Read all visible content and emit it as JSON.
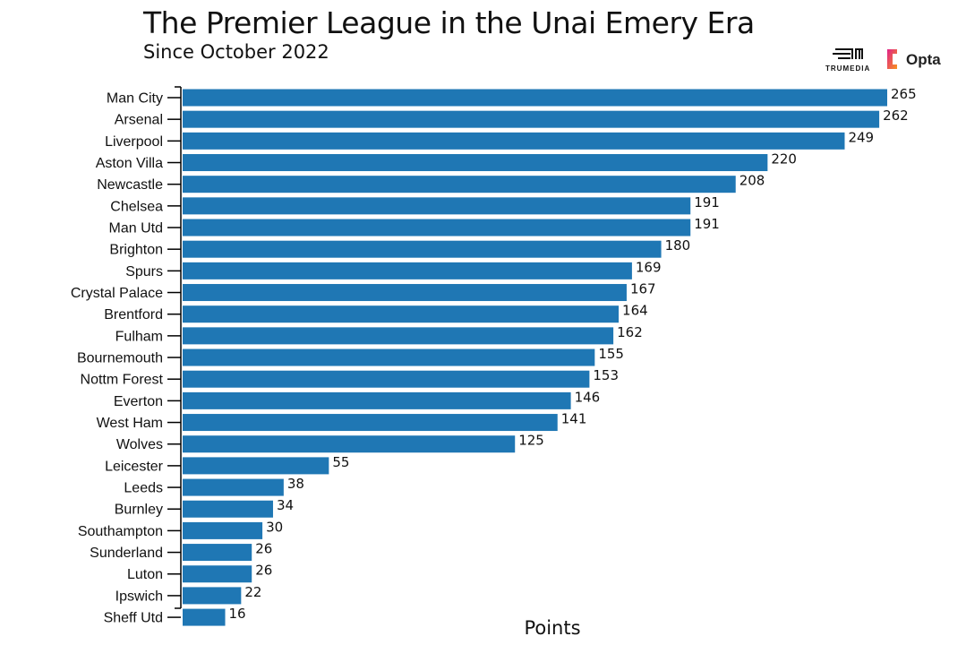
{
  "chart_data": {
    "type": "bar",
    "orientation": "horizontal",
    "title": "The Premier League in the Unai Emery Era",
    "subtitle": "Since October 2022",
    "xlabel": "Points",
    "ylabel": "",
    "xlim": [
      0,
      265
    ],
    "bar_color": "#1f77b4",
    "categories": [
      "Man City",
      "Arsenal",
      "Liverpool",
      "Aston Villa",
      "Newcastle",
      "Chelsea",
      "Man Utd",
      "Brighton",
      "Spurs",
      "Crystal Palace",
      "Brentford",
      "Fulham",
      "Bournemouth",
      "Nottm Forest",
      "Everton",
      "West Ham",
      "Wolves",
      "Leicester",
      "Leeds",
      "Burnley",
      "Southampton",
      "Sunderland",
      "Luton",
      "Ipswich",
      "Sheff Utd"
    ],
    "values": [
      265,
      262,
      249,
      220,
      208,
      191,
      191,
      180,
      169,
      167,
      164,
      162,
      155,
      153,
      146,
      141,
      125,
      55,
      38,
      34,
      30,
      26,
      26,
      22,
      16
    ]
  },
  "logos": {
    "trumedia": "TRUMEDIA",
    "opta": "Opta"
  }
}
